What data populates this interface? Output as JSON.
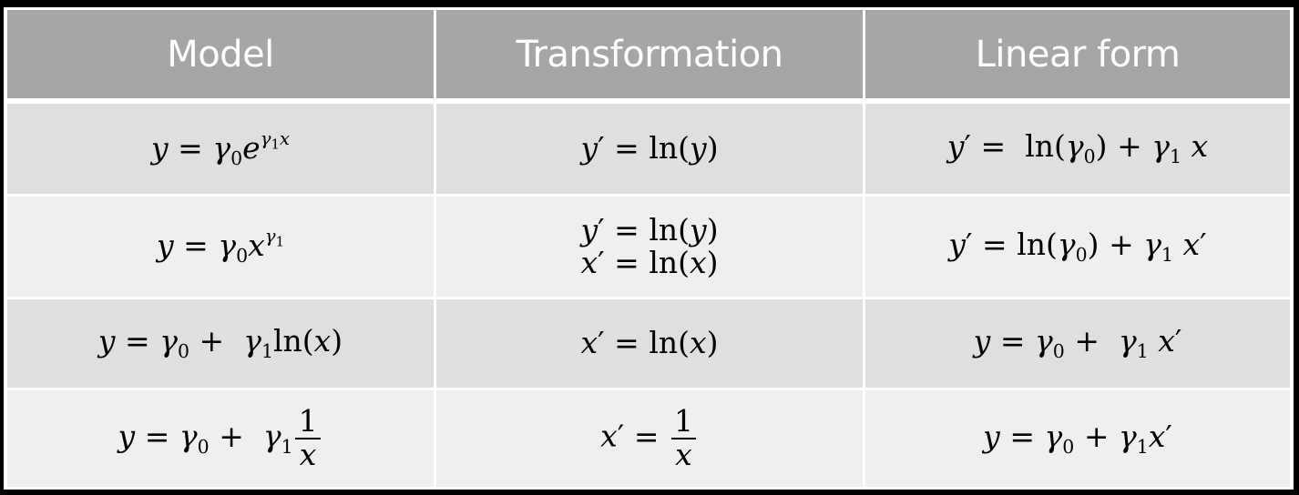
{
  "table": {
    "headers": {
      "model": "Model",
      "transformation": "Transformation",
      "linear_form": "Linear form"
    },
    "rows": [
      {
        "model": "y = γ₀e^(γ₁x)",
        "transformation": [
          "y′ = ln(y)"
        ],
        "linear_form": "y′ = ln(γ₀) + γ₁ x"
      },
      {
        "model": "y = γ₀x^(γ₁)",
        "transformation": [
          "y′ = ln(y)",
          "x′ = ln(x)"
        ],
        "linear_form": "y′ = ln(γ₀) + γ₁ x′"
      },
      {
        "model": "y = γ₀ + γ₁ln(x)",
        "transformation": [
          "x′ = ln(x)"
        ],
        "linear_form": "y = γ₀ + γ₁ x′"
      },
      {
        "model": "y = γ₀ + γ₁(1/x)",
        "transformation": [
          "x′ = 1/x"
        ],
        "linear_form": "y = γ₀ + γ₁x′"
      }
    ]
  },
  "colors": {
    "header_bg": "#a6a6a6",
    "row_dark_bg": "#dfdfdf",
    "row_light_bg": "#efefef",
    "grid_lines": "#ffffff",
    "background": "#000000"
  }
}
